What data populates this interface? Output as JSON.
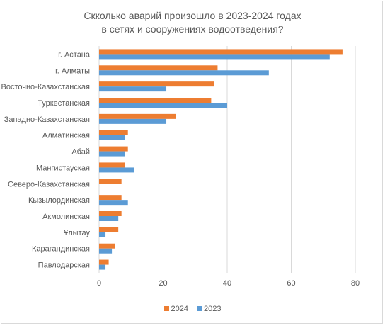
{
  "chart_data": {
    "type": "bar",
    "orientation": "horizontal",
    "title": "Скколько аварий произошло в 2023-2024 годах\nв сетях и сооружениях водоотведения?",
    "categories": [
      "г. Астана",
      "г. Алматы",
      "Восточно-Казахстанская",
      "Туркестанская",
      "Западно-Казахстанская",
      "Алматинская",
      "Абай",
      "Мангистауская",
      "Северо-Казахстанская",
      "Кызылординская",
      "Акмолинская",
      "Ұлытау",
      "Карагандинская",
      "Павлодарская"
    ],
    "series": [
      {
        "name": "2024",
        "color": "#ed7d31",
        "values": [
          76,
          37,
          36,
          35,
          24,
          9,
          9,
          8,
          7,
          7,
          7,
          6,
          5,
          3
        ]
      },
      {
        "name": "2023",
        "color": "#5b9bd5",
        "values": [
          72,
          53,
          21,
          40,
          21,
          8,
          8,
          11,
          0,
          9,
          6,
          2,
          4,
          2
        ]
      }
    ],
    "xlim": [
      0,
      80
    ],
    "xticks": [
      "0",
      "20",
      "40",
      "60",
      "80"
    ],
    "grid": true,
    "legend": "bottom"
  }
}
